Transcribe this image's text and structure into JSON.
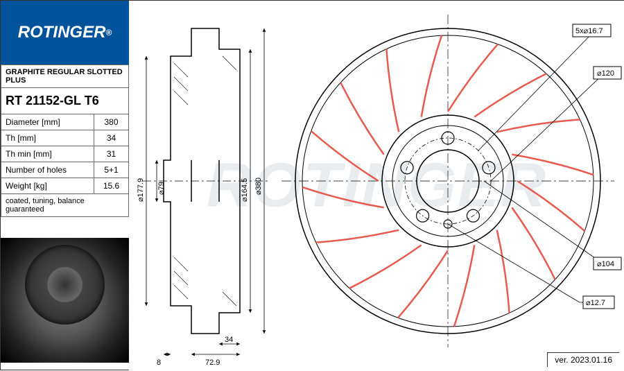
{
  "brand": "ROTINGER",
  "product_line": "GRAPHITE REGULAR SLOTTED PLUS",
  "part_number": "RT 21152-GL T6",
  "specs": [
    {
      "label": "Diameter [mm]",
      "value": "380"
    },
    {
      "label": "Th [mm]",
      "value": "34"
    },
    {
      "label": "Th min [mm]",
      "value": "31"
    },
    {
      "label": "Number of holes",
      "value": "5+1"
    },
    {
      "label": "Weight [kg]",
      "value": "15.6"
    }
  ],
  "note": "coated, tuning, balance guaranteed",
  "version": "ver. 2023.01.16",
  "side_view": {
    "dims": {
      "d177_9": "⌀177.9",
      "d79": "⌀79",
      "d164_5": "⌀164.5",
      "d380": "⌀380",
      "t34": "34",
      "t8": "8",
      "w72_9": "72.9"
    },
    "stroke": "#000000",
    "stroke_width": 1.5
  },
  "front_view": {
    "outer_d": 380,
    "hole_pattern": "5x⌀16.7",
    "dims": {
      "d120": "⌀120",
      "d104": "⌀104",
      "d12_7": "⌀12.7"
    },
    "slot_color": "#e85a4f",
    "slot_count": 16,
    "bolt_holes": 5,
    "stroke": "#000000"
  },
  "colors": {
    "brand_bg": "#00529b",
    "brand_fg": "#ffffff",
    "watermark": "#e8ecef",
    "line": "#000000",
    "slot": "#e85a4f"
  }
}
